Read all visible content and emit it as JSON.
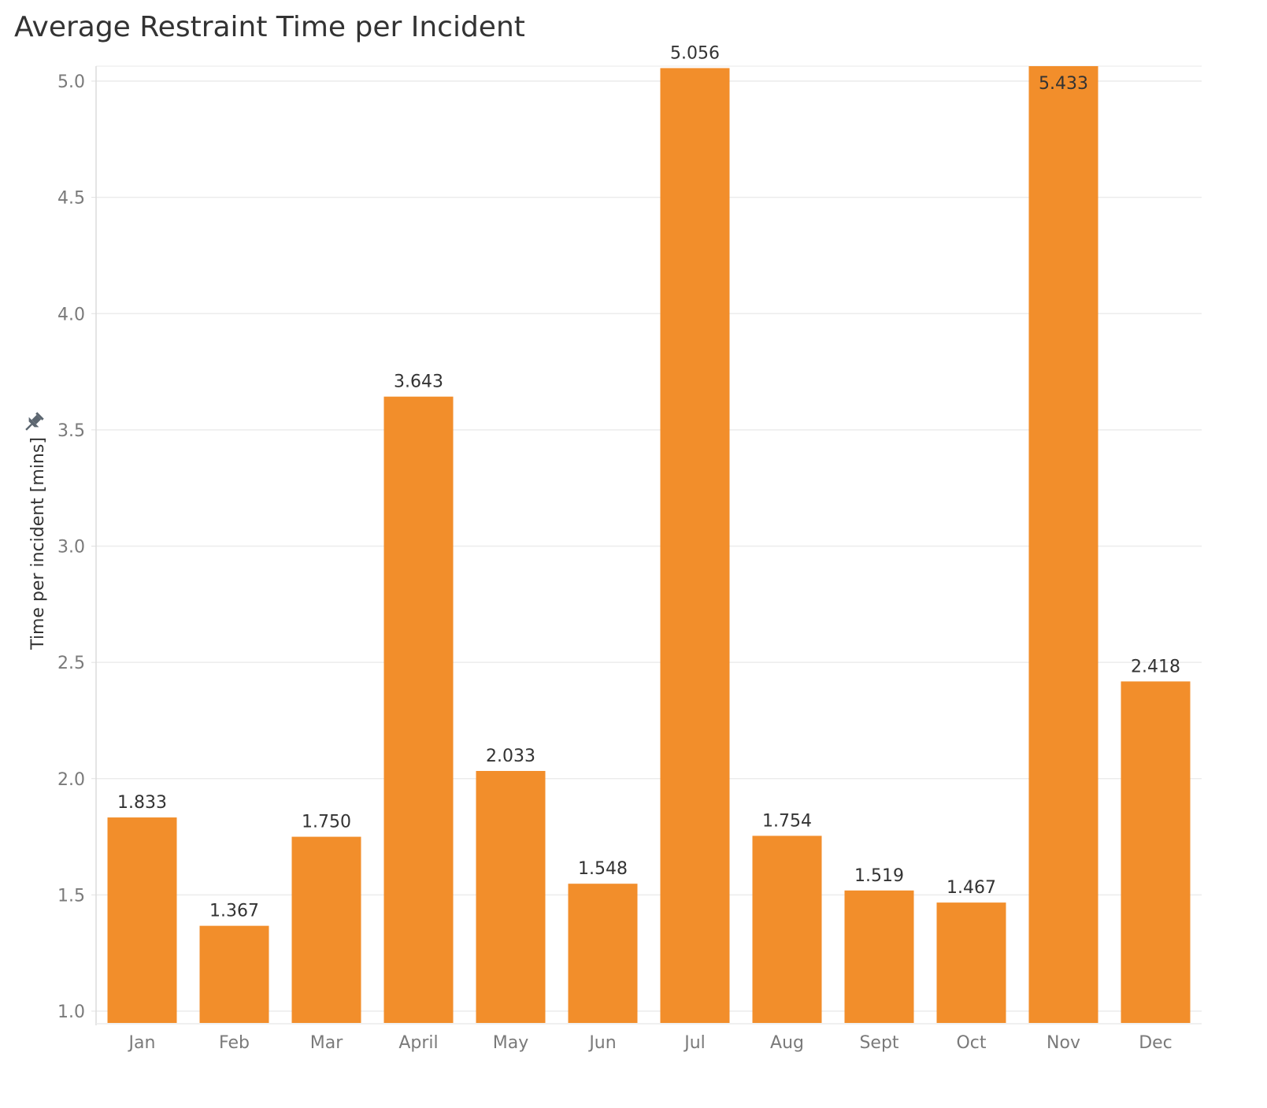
{
  "chart_data": {
    "type": "bar",
    "title": "Average Restraint Time per Incident",
    "xlabel": "",
    "ylabel": "Time per incident [mins]",
    "ylim": [
      1.0,
      5.0
    ],
    "yticks": [
      "1.0",
      "1.5",
      "2.0",
      "2.5",
      "3.0",
      "3.5",
      "4.0",
      "4.5",
      "5.0"
    ],
    "categories": [
      "Jan",
      "Feb",
      "Mar",
      "April",
      "May",
      "Jun",
      "Jul",
      "Aug",
      "Sept",
      "Oct",
      "Nov",
      "Dec"
    ],
    "values": [
      1.833,
      1.367,
      1.75,
      3.643,
      2.033,
      1.548,
      5.056,
      1.754,
      1.519,
      1.467,
      5.433,
      2.418
    ],
    "value_labels": [
      "1.833",
      "1.367",
      "1.750",
      "3.643",
      "2.033",
      "1.548",
      "5.056",
      "1.754",
      "1.519",
      "1.467",
      "5.433",
      "2.418"
    ],
    "grid": true,
    "bar_color": "#f28e2b",
    "pin_icon": "pin-icon"
  }
}
